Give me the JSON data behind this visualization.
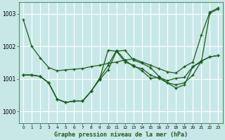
{
  "title": "Graphe pression niveau de la mer (hPa)",
  "bg_color": "#c8e8e8",
  "grid_color": "#ffffff",
  "line_color": "#1a5c1a",
  "x_ticks": [
    0,
    1,
    2,
    3,
    4,
    5,
    6,
    7,
    8,
    9,
    10,
    11,
    12,
    13,
    14,
    15,
    16,
    17,
    18,
    19,
    20,
    21,
    22,
    23
  ],
  "ylim": [
    999.65,
    1003.35
  ],
  "yticks": [
    1000,
    1001,
    1002,
    1003
  ],
  "lines": [
    [
      1002.82,
      1002.0,
      1001.65,
      1001.35,
      1001.25,
      1001.28,
      1001.3,
      1001.32,
      1001.38,
      1001.42,
      1001.48,
      1001.52,
      1001.58,
      1001.62,
      1001.52,
      1001.42,
      1001.32,
      1001.22,
      1001.18,
      1001.38,
      1001.52,
      1002.35,
      1003.05,
      1003.18
    ],
    [
      1001.12,
      1001.12,
      1001.08,
      1000.88,
      1000.38,
      1000.28,
      1000.32,
      1000.32,
      1000.62,
      1001.0,
      1001.88,
      1001.85,
      1001.52,
      1001.42,
      1001.25,
      1001.02,
      1001.05,
      1000.95,
      1001.02,
      1001.05,
      1001.38,
      1001.52,
      1003.02,
      1003.15
    ],
    [
      1001.12,
      1001.12,
      1001.08,
      1000.88,
      1000.38,
      1000.28,
      1000.32,
      1000.32,
      1000.62,
      1000.98,
      1001.28,
      1001.85,
      1001.88,
      1001.58,
      1001.48,
      1001.35,
      1001.08,
      1000.88,
      1000.82,
      1000.88,
      1001.12,
      1001.55,
      1001.68,
      1001.72
    ],
    [
      1001.12,
      1001.12,
      1001.08,
      1000.88,
      1000.38,
      1000.28,
      1000.32,
      1000.32,
      1000.62,
      1001.02,
      1001.42,
      1001.88,
      1001.58,
      1001.38,
      1001.32,
      1001.12,
      1001.02,
      1000.88,
      1000.72,
      1000.82,
      1001.38,
      1001.55,
      1001.68,
      1001.72
    ]
  ]
}
